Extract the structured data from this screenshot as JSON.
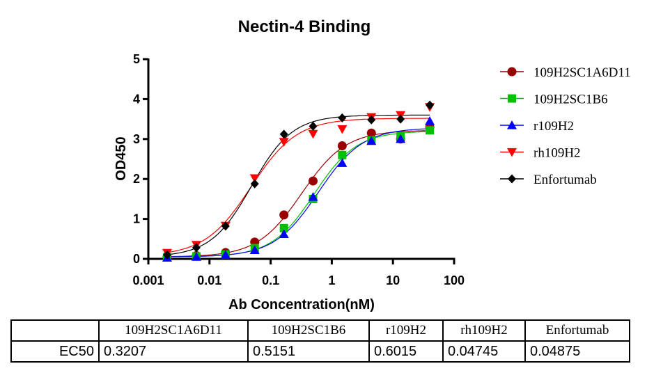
{
  "chart_data": {
    "type": "scatter",
    "title": "Nectin-4  Binding",
    "xlabel": "Ab Concentration(nM)",
    "ylabel": "OD450",
    "xscale": "log",
    "xlim": [
      0.001,
      100
    ],
    "ylim": [
      0,
      5
    ],
    "xticks": [
      "0.001",
      "0.01",
      "0.1",
      "1",
      "10",
      "100"
    ],
    "yticks": [
      "0",
      "1",
      "2",
      "3",
      "4",
      "5"
    ],
    "legend_position": "right",
    "grid": false,
    "x": [
      0.00203,
      0.0061,
      0.0183,
      0.0549,
      0.165,
      0.494,
      1.48,
      4.44,
      13.33,
      40
    ],
    "series": [
      {
        "name": "109H2SC1A6D11",
        "color": "#990000",
        "marker": "circle",
        "values": [
          0.05,
          0.08,
          0.16,
          0.42,
          1.1,
          1.95,
          2.83,
          3.15,
          3.0,
          3.3
        ],
        "fit": {
          "bottom": 0.05,
          "top": 3.22,
          "ec50": 0.3207,
          "hill": 1.2
        }
      },
      {
        "name": "109H2SC1B6",
        "color": "#00c000",
        "marker": "square",
        "values": [
          0.04,
          0.06,
          0.11,
          0.27,
          0.77,
          1.5,
          2.6,
          2.97,
          3.07,
          3.22
        ],
        "fit": {
          "bottom": 0.05,
          "top": 3.2,
          "ec50": 0.5151,
          "hill": 1.25
        }
      },
      {
        "name": "r109H2",
        "color": "#0000ff",
        "marker": "triangle-up",
        "values": [
          0.03,
          0.05,
          0.1,
          0.22,
          0.62,
          1.55,
          2.4,
          2.95,
          3.0,
          3.45
        ],
        "fit": {
          "bottom": 0.05,
          "top": 3.28,
          "ec50": 0.6015,
          "hill": 1.2
        }
      },
      {
        "name": "rh109H2",
        "color": "#ff0000",
        "marker": "triangle-down",
        "values": [
          0.15,
          0.35,
          0.83,
          2.02,
          2.93,
          3.13,
          3.25,
          3.55,
          3.6,
          3.8
        ],
        "fit": {
          "bottom": 0.07,
          "top": 3.52,
          "ec50": 0.04745,
          "hill": 1.15
        }
      },
      {
        "name": "Enfortumab",
        "color": "#000000",
        "marker": "diamond",
        "values": [
          0.1,
          0.28,
          0.82,
          1.88,
          3.12,
          3.32,
          3.53,
          3.48,
          3.5,
          3.85
        ],
        "fit": {
          "bottom": 0.05,
          "top": 3.6,
          "ec50": 0.04875,
          "hill": 1.3
        }
      }
    ]
  },
  "table": {
    "headers": [
      "",
      "109H2SC1A6D11",
      "109H2SC1B6",
      "r109H2",
      "rh109H2",
      "Enfortumab"
    ],
    "row_label": "EC50",
    "values": [
      "0.3207",
      "0.5151",
      "0.6015",
      "0.04745",
      "0.04875"
    ]
  }
}
